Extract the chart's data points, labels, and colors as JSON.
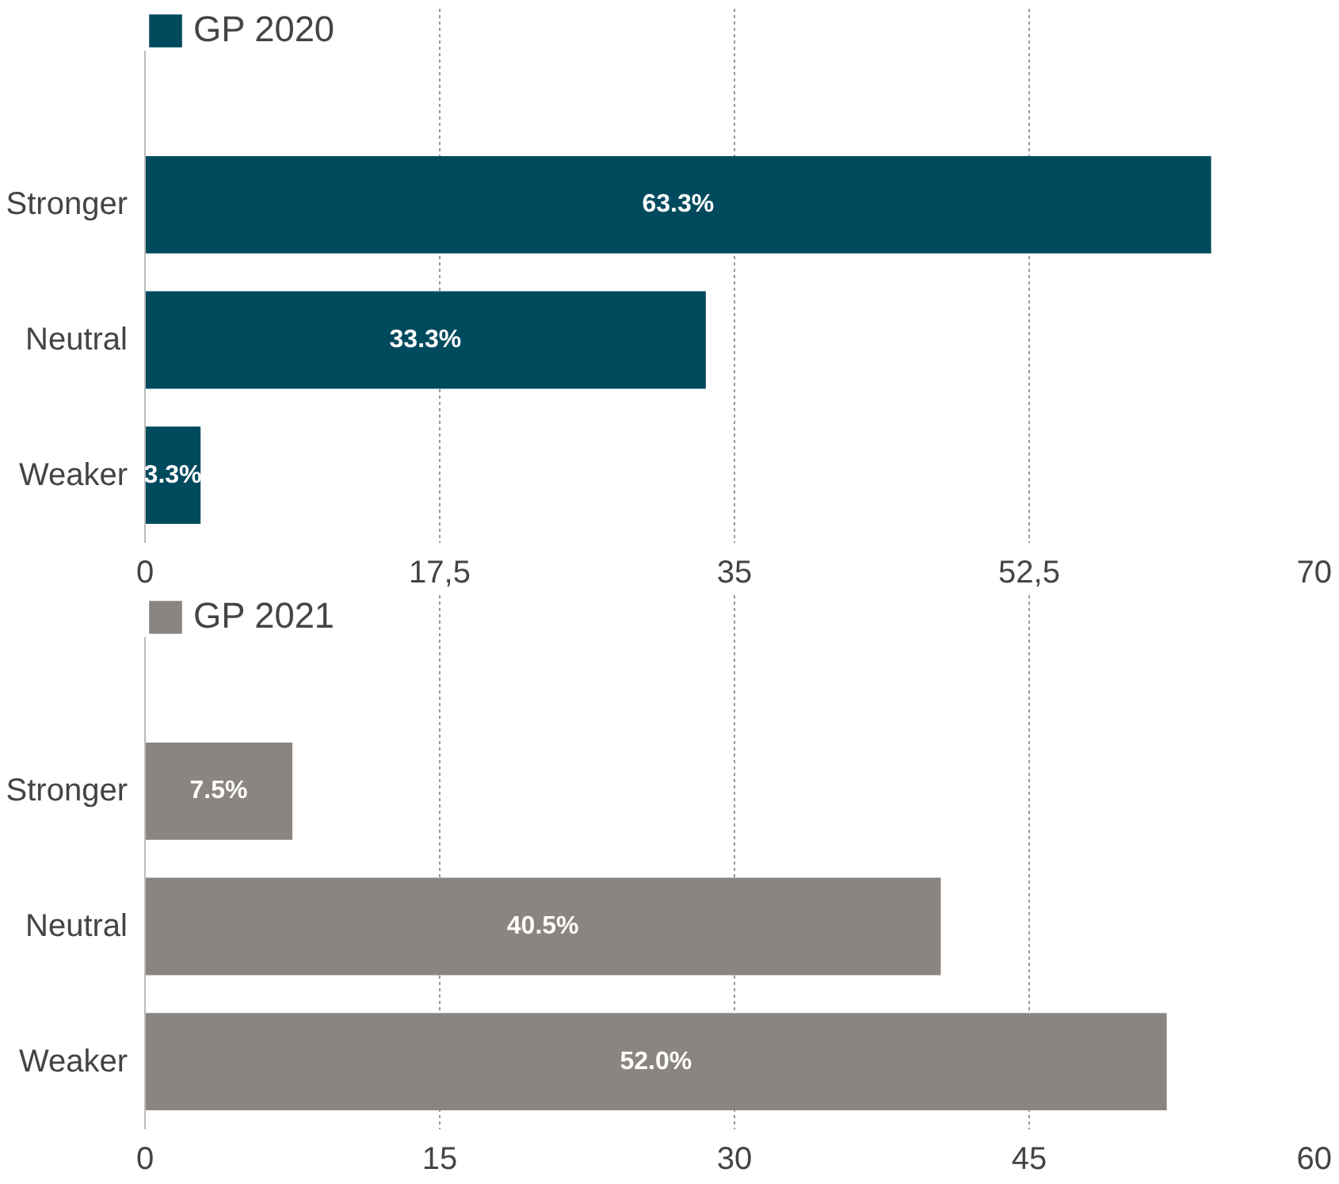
{
  "chart_data": [
    {
      "type": "bar",
      "orientation": "horizontal",
      "categories": [
        "Stronger",
        "Neutral",
        "Weaker"
      ],
      "series": [
        {
          "name": "GP 2020",
          "color": "#004a5e",
          "values": [
            63.3,
            33.3,
            3.3
          ],
          "value_labels": [
            "63.3%",
            "33.3%",
            "3.3%"
          ]
        }
      ],
      "xlim": [
        0,
        70
      ],
      "xticks": [
        0,
        {
          "value": 17.5,
          "label": "17,5"
        },
        35,
        {
          "value": 52.5,
          "label": "52,5"
        },
        70
      ],
      "grid": "x",
      "legend": "top left"
    },
    {
      "type": "bar",
      "orientation": "horizontal",
      "categories": [
        "Stronger",
        "Neutral",
        "Weaker"
      ],
      "series": [
        {
          "name": "GP 2021",
          "color": "#8a8580",
          "values": [
            7.5,
            40.5,
            52.0
          ],
          "value_labels": [
            "7.5%",
            "40.5%",
            "52.0%"
          ]
        }
      ],
      "xlim": [
        0,
        60
      ],
      "xticks": [
        0,
        15,
        30,
        45,
        60
      ],
      "grid": "x",
      "legend": "top left"
    }
  ]
}
